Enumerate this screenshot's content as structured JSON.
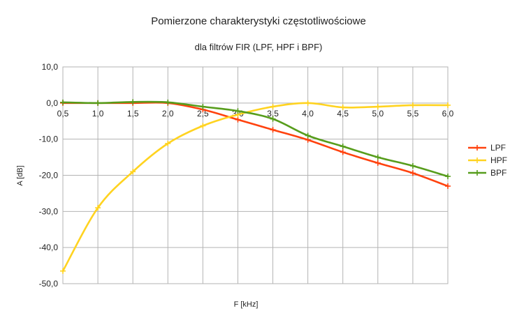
{
  "chart_data": {
    "type": "line",
    "title": "Pomierzone charakterystyki częstotliwościowe",
    "subtitle": "dla filtrów FIR (LPF, HPF i BPF)",
    "xlabel": "F [kHz]",
    "ylabel": "A [dB]",
    "x": [
      0.5,
      1.0,
      1.5,
      2.0,
      2.5,
      3.0,
      3.5,
      4.0,
      4.5,
      5.0,
      5.5,
      6.0
    ],
    "x_tick_labels": [
      "0,5",
      "1,0",
      "1,5",
      "2,0",
      "2,5",
      "3,0",
      "3,5",
      "4,0",
      "4,5",
      "5,0",
      "5,5",
      "6,0"
    ],
    "y_ticks": [
      10,
      0,
      -10,
      -20,
      -30,
      -40,
      -50
    ],
    "y_tick_labels": [
      "10,0",
      "0,0",
      "-10,0",
      "-20,0",
      "-30,0",
      "-40,0",
      "-50,0"
    ],
    "ylim": [
      -50,
      10
    ],
    "xlim": [
      0.5,
      6.0
    ],
    "grid": true,
    "legend_position": "right",
    "series": [
      {
        "name": "LPF",
        "color": "#ff420e",
        "values": [
          0.0,
          0.0,
          0.0,
          0.0,
          -1.8,
          -4.6,
          -7.4,
          -10.2,
          -13.6,
          -16.6,
          -19.4,
          -23.0
        ]
      },
      {
        "name": "HPF",
        "color": "#ffd320",
        "values": [
          -46.5,
          -29.0,
          -19.0,
          -11.2,
          -6.3,
          -3.2,
          -1.0,
          0.0,
          -1.2,
          -1.0,
          -0.6,
          -0.6
        ]
      },
      {
        "name": "BPF",
        "color": "#579d1c",
        "values": [
          0.2,
          0.0,
          0.3,
          0.2,
          -1.0,
          -2.2,
          -4.4,
          -9.0,
          -12.0,
          -15.0,
          -17.4,
          -20.3
        ]
      }
    ]
  }
}
